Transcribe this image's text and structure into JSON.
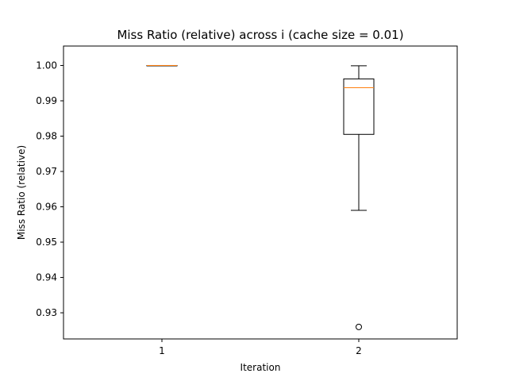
{
  "chart_data": {
    "type": "box",
    "title": "Miss Ratio (relative) across i (cache size = 0.01)",
    "xlabel": "Iteration",
    "ylabel": "Miss Ratio (relative)",
    "categories": [
      "1",
      "2"
    ],
    "ylim": [
      0.9226,
      1.0055
    ],
    "yticks": [
      "0.93",
      "0.94",
      "0.95",
      "0.96",
      "0.97",
      "0.98",
      "0.99",
      "1.00"
    ],
    "grid": false,
    "boxes": [
      {
        "category": "1",
        "whisker_low": 1.0,
        "q1": 1.0,
        "median": 1.0,
        "q3": 1.0,
        "whisker_high": 1.0,
        "outliers": []
      },
      {
        "category": "2",
        "whisker_low": 0.959,
        "q1": 0.9805,
        "median": 0.9937,
        "q3": 0.9962,
        "whisker_high": 0.9999,
        "outliers": [
          0.926
        ]
      }
    ],
    "colors": {
      "box": "#000000",
      "median": "#ff7f0e",
      "background": "#ffffff"
    }
  }
}
